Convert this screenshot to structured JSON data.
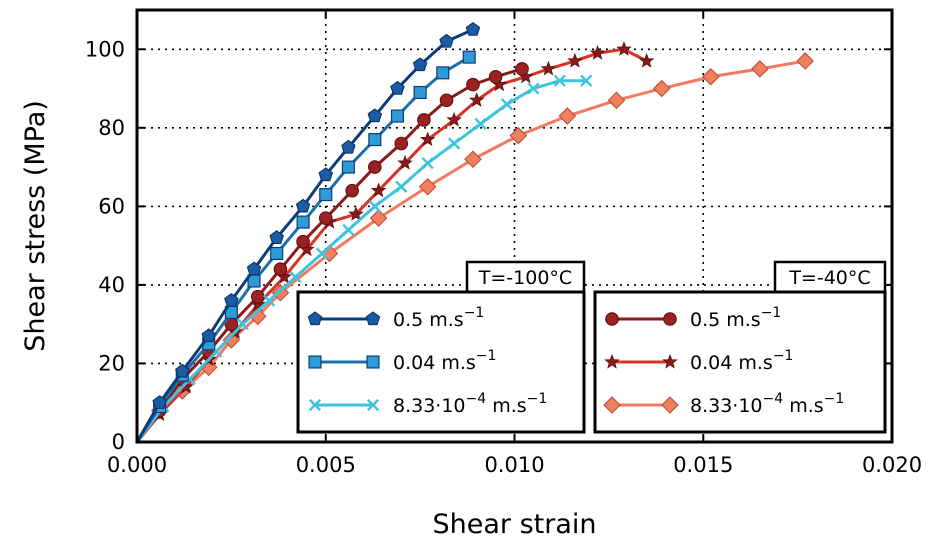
{
  "chart_data": {
    "type": "line",
    "xlabel": "Shear strain",
    "ylabel": "Shear stress (MPa)",
    "xlim": [
      0,
      0.02
    ],
    "ylim": [
      0,
      110
    ],
    "xticks": [
      0,
      0.005,
      0.01,
      0.015,
      0.02
    ],
    "xtick_labels": [
      "0.000",
      "0.005",
      "0.010",
      "0.015",
      "0.020"
    ],
    "yticks": [
      0,
      20,
      40,
      60,
      80,
      100
    ],
    "ytick_labels": [
      "0",
      "20",
      "40",
      "60",
      "80",
      "100"
    ],
    "grid": true,
    "legends": [
      {
        "title": "T=-100°C",
        "placement": "lower-center",
        "entries": [
          0,
          1,
          2
        ]
      },
      {
        "title": "T=-40°C",
        "placement": "lower-right",
        "entries": [
          3,
          4,
          5
        ]
      }
    ],
    "series": [
      {
        "name_main": "0.5 m.s",
        "name_exp": "−1",
        "color": "#0d3d78",
        "marker": "pentagon",
        "marker_fill": "#1a5ba3",
        "x": [
          0.0006,
          0.0012,
          0.0019,
          0.0025,
          0.0031,
          0.0037,
          0.0044,
          0.005,
          0.0056,
          0.0063,
          0.0069,
          0.0075,
          0.0082,
          0.0089
        ],
        "y": [
          10,
          18,
          27,
          36,
          44,
          52,
          60,
          68,
          75,
          83,
          90,
          96,
          102,
          105
        ]
      },
      {
        "name_main": "0.04 m.s",
        "name_exp": "−1",
        "color": "#1c6fa8",
        "marker": "square",
        "marker_fill": "#2e9bd6",
        "x": [
          0.0006,
          0.0012,
          0.0019,
          0.0025,
          0.0031,
          0.0037,
          0.0044,
          0.005,
          0.0056,
          0.0063,
          0.0069,
          0.0075,
          0.0081,
          0.0088
        ],
        "y": [
          9,
          17,
          25,
          33,
          41,
          48,
          56,
          63,
          70,
          77,
          83,
          89,
          94,
          98
        ]
      },
      {
        "name_main": "8.33·10",
        "name_exp": "−4",
        "name_tail": " m.s",
        "name_tail_exp": "−1",
        "color": "#3ec3df",
        "marker": "x",
        "marker_fill": "#3ec3df",
        "x": [
          0.0007,
          0.0014,
          0.0021,
          0.0028,
          0.0035,
          0.0042,
          0.0049,
          0.0056,
          0.0063,
          0.007,
          0.0077,
          0.0084,
          0.0091,
          0.0098,
          0.0105,
          0.0112,
          0.0119
        ],
        "y": [
          9,
          16,
          23,
          30,
          36,
          42,
          48,
          54,
          60,
          65,
          71,
          76,
          81,
          86,
          90,
          92,
          92
        ]
      },
      {
        "name_main": "0.5 m.s",
        "name_exp": "−1",
        "color": "#8b1a1a",
        "marker": "circle",
        "marker_fill": "#9a2222",
        "x": [
          0.0006,
          0.0012,
          0.0019,
          0.0025,
          0.0032,
          0.0038,
          0.0044,
          0.005,
          0.0057,
          0.0063,
          0.007,
          0.0076,
          0.0082,
          0.0089,
          0.0095,
          0.0102
        ],
        "y": [
          8,
          16,
          23,
          30,
          37,
          44,
          51,
          57,
          64,
          70,
          76,
          82,
          87,
          91,
          93,
          95
        ]
      },
      {
        "name_main": "0.04 m.s",
        "name_exp": "−1",
        "color": "#d63328",
        "marker": "star",
        "marker_fill": "#8b1a1a",
        "x": [
          0.0006,
          0.0013,
          0.0019,
          0.0026,
          0.0032,
          0.0039,
          0.0045,
          0.0051,
          0.0058,
          0.0064,
          0.0071,
          0.0077,
          0.0084,
          0.009,
          0.0096,
          0.0103,
          0.0109,
          0.0116,
          0.0122,
          0.0129,
          0.0135
        ],
        "y": [
          7,
          14,
          21,
          28,
          35,
          42,
          49,
          56,
          58,
          64,
          71,
          77,
          82,
          87,
          91,
          93,
          95,
          97,
          99,
          100,
          97
        ]
      },
      {
        "name_main": "8.33·10",
        "name_exp": "−4",
        "name_tail": " m.s",
        "name_tail_exp": "−1",
        "color": "#f07b62",
        "marker": "diamond",
        "marker_fill": "#ef7f5f",
        "x": [
          0.0006,
          0.0012,
          0.0019,
          0.0025,
          0.0032,
          0.0038,
          0.0051,
          0.0064,
          0.0077,
          0.0089,
          0.0101,
          0.0114,
          0.0127,
          0.0139,
          0.0152,
          0.0165,
          0.0177
        ],
        "y": [
          8,
          13,
          19,
          26,
          32,
          38,
          48,
          57,
          65,
          72,
          78,
          83,
          87,
          90,
          93,
          95,
          97
        ]
      }
    ]
  }
}
